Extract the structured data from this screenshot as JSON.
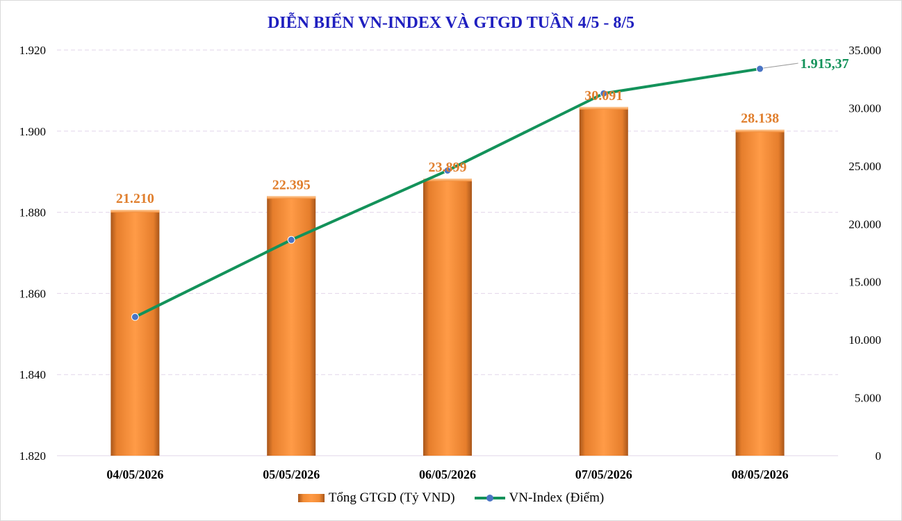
{
  "chart_data": {
    "type": "bar+line",
    "title": "DIỄN BIẾN VN-INDEX VÀ GTGD TUẦN 4/5 - 8/5",
    "categories": [
      "04/05/2026",
      "05/05/2026",
      "06/05/2026",
      "07/05/2026",
      "08/05/2026"
    ],
    "series": [
      {
        "name": "Tổng GTGD (Tỷ VND)",
        "type": "bar",
        "axis": "right",
        "values": [
          21210,
          22395,
          23899,
          30091,
          28138
        ],
        "labels": [
          "21.210",
          "22.395",
          "23.899",
          "30.091",
          "28.138"
        ]
      },
      {
        "name": "VN-Index (Điểm)",
        "type": "line",
        "axis": "left",
        "values": [
          1854.2,
          1873.2,
          1890.3,
          1909.3,
          1915.37
        ],
        "end_label": "1.915,37"
      }
    ],
    "left_axis": {
      "ylim": [
        1820,
        1920
      ],
      "ticks": [
        "1.820",
        "1.840",
        "1.860",
        "1.880",
        "1.900",
        "1.920"
      ]
    },
    "right_axis": {
      "ylim": [
        0,
        35000
      ],
      "ticks": [
        "0",
        "5.000",
        "10.000",
        "15.000",
        "20.000",
        "25.000",
        "30.000",
        "35.000"
      ]
    },
    "grid": true,
    "legend": "bottom"
  },
  "colors": {
    "title": "#1f1fbf",
    "bar": "#f28b35",
    "bar_label": "#e07f2e",
    "line": "#13925a",
    "marker": "#4a74c4",
    "grid": "#e2d5ea"
  }
}
